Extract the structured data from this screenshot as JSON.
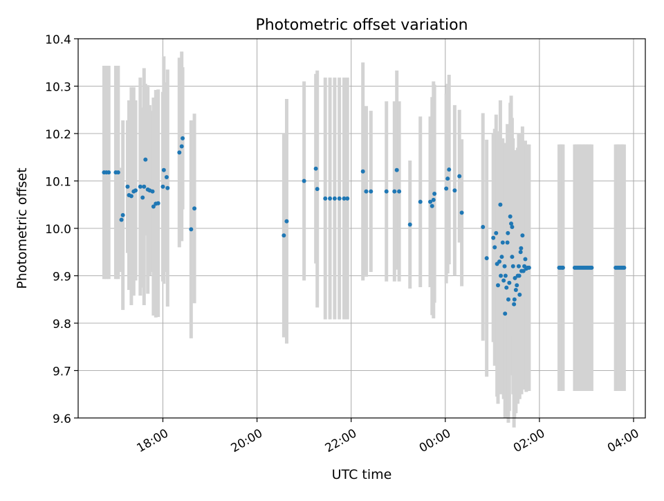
{
  "chart_data": {
    "type": "scatter",
    "title": "Photometric offset variation",
    "xlabel": "UTC time",
    "ylabel": "Photometric offset",
    "x_tick_labels": [
      "18:00",
      "20:00",
      "22:00",
      "00:00",
      "02:00",
      "04:00"
    ],
    "x_tick_hours": [
      18,
      20,
      22,
      24,
      26,
      28
    ],
    "xlim_hours": [
      16.2,
      28.25
    ],
    "y_ticks": [
      "9.6",
      "9.7",
      "9.8",
      "9.9",
      "10.0",
      "10.1",
      "10.2",
      "10.3",
      "10.4"
    ],
    "ylim": [
      9.6,
      10.4
    ],
    "grid": true,
    "errorbar_color": "#d3d3d3",
    "point_color": "#1f77b4",
    "series": [
      {
        "points": [
          [
            16.75,
            10.118,
            0.225
          ],
          [
            16.8,
            10.118,
            0.225
          ],
          [
            16.85,
            10.118,
            0.225
          ],
          [
            17.0,
            10.118,
            0.225
          ],
          [
            17.05,
            10.118,
            0.225
          ],
          [
            17.12,
            10.018,
            0.11
          ],
          [
            17.15,
            10.028,
            0.2
          ],
          [
            17.25,
            10.088,
            0.14
          ],
          [
            17.28,
            10.07,
            0.2
          ],
          [
            17.33,
            10.068,
            0.23
          ],
          [
            17.38,
            10.078,
            0.22
          ],
          [
            17.42,
            10.08,
            0.19
          ],
          [
            17.52,
            10.088,
            0.23
          ],
          [
            17.57,
            10.065,
            0.19
          ],
          [
            17.6,
            10.088,
            0.25
          ],
          [
            17.63,
            10.145,
            0.16
          ],
          [
            17.68,
            10.082,
            0.22
          ],
          [
            17.72,
            10.08,
            0.18
          ],
          [
            17.78,
            10.078,
            0.17
          ],
          [
            17.8,
            10.046,
            0.23
          ],
          [
            17.85,
            10.052,
            0.24
          ],
          [
            17.9,
            10.053,
            0.24
          ],
          [
            18.0,
            10.088,
            0.2
          ],
          [
            18.02,
            10.123,
            0.24
          ],
          [
            18.08,
            10.108,
            0.2
          ],
          [
            18.1,
            10.085,
            0.25
          ],
          [
            18.35,
            10.16,
            0.2
          ],
          [
            18.4,
            10.173,
            0.2
          ],
          [
            18.42,
            10.19,
            0.15
          ],
          [
            18.6,
            9.998,
            0.23
          ],
          [
            18.67,
            10.042,
            0.2
          ],
          [
            20.57,
            9.985,
            0.215
          ],
          [
            20.63,
            10.015,
            0.258
          ],
          [
            21.0,
            10.1,
            0.21
          ],
          [
            21.25,
            10.126,
            0.2
          ],
          [
            21.28,
            10.083,
            0.25
          ],
          [
            21.45,
            10.063,
            0.255
          ],
          [
            21.55,
            10.063,
            0.255
          ],
          [
            21.65,
            10.063,
            0.255
          ],
          [
            21.75,
            10.063,
            0.255
          ],
          [
            21.85,
            10.063,
            0.255
          ],
          [
            21.92,
            10.063,
            0.255
          ],
          [
            22.25,
            10.12,
            0.23
          ],
          [
            22.32,
            10.078,
            0.18
          ],
          [
            22.42,
            10.078,
            0.17
          ],
          [
            22.75,
            10.078,
            0.19
          ],
          [
            22.92,
            10.078,
            0.19
          ],
          [
            22.97,
            10.123,
            0.21
          ],
          [
            23.02,
            10.078,
            0.19
          ],
          [
            23.25,
            10.008,
            0.135
          ],
          [
            23.47,
            10.056,
            0.18
          ],
          [
            23.68,
            10.056,
            0.18
          ],
          [
            23.72,
            10.047,
            0.23
          ],
          [
            23.75,
            10.06,
            0.25
          ],
          [
            23.77,
            10.073,
            0.23
          ],
          [
            24.02,
            10.084,
            0.2
          ],
          [
            24.05,
            10.105,
            0.2
          ],
          [
            24.08,
            10.124,
            0.2
          ],
          [
            24.2,
            10.08,
            0.18
          ],
          [
            24.3,
            10.11,
            0.14
          ],
          [
            24.35,
            10.033,
            0.155
          ],
          [
            24.8,
            10.003,
            0.24
          ],
          [
            24.88,
            9.937,
            0.25
          ],
          [
            25.02,
            9.98,
            0.22
          ],
          [
            25.05,
            9.96,
            0.25
          ],
          [
            25.08,
            9.99,
            0.25
          ],
          [
            25.1,
            9.925,
            0.28
          ],
          [
            25.12,
            9.88,
            0.25
          ],
          [
            25.15,
            9.93,
            0.27
          ],
          [
            25.17,
            10.05,
            0.22
          ],
          [
            25.2,
            9.94,
            0.22
          ],
          [
            25.22,
            9.97,
            0.22
          ],
          [
            25.24,
            9.89,
            0.25
          ],
          [
            25.26,
            9.92,
            0.26
          ],
          [
            25.28,
            9.9,
            0.28
          ],
          [
            25.3,
            9.875,
            0.27
          ],
          [
            25.32,
            9.97,
            0.25
          ],
          [
            25.34,
            9.85,
            0.26
          ],
          [
            25.36,
            9.885,
            0.27
          ],
          [
            25.38,
            10.025,
            0.24
          ],
          [
            25.4,
            10.01,
            0.27
          ],
          [
            25.42,
            9.94,
            0.25
          ],
          [
            25.44,
            9.92,
            0.27
          ],
          [
            25.46,
            9.84,
            0.26
          ],
          [
            25.48,
            9.895,
            0.27
          ],
          [
            25.5,
            9.87,
            0.26
          ],
          [
            25.52,
            9.88,
            0.24
          ],
          [
            25.54,
            9.9,
            0.27
          ],
          [
            25.56,
            9.92,
            0.28
          ],
          [
            25.58,
            9.86,
            0.22
          ],
          [
            25.6,
            9.95,
            0.25
          ],
          [
            25.62,
            9.91,
            0.26
          ],
          [
            25.64,
            9.985,
            0.23
          ],
          [
            25.66,
            9.91,
            0.25
          ],
          [
            25.68,
            9.92,
            0.26
          ],
          [
            25.7,
            9.935,
            0.25
          ],
          [
            25.72,
            9.915,
            0.26
          ],
          [
            25.75,
            9.917,
            0.26
          ],
          [
            25.78,
            9.917,
            0.26
          ],
          [
            25.42,
            10.003,
            0.23
          ],
          [
            25.47,
            9.85,
            0.25
          ],
          [
            25.33,
            9.99,
            0.22
          ],
          [
            25.57,
            9.9,
            0.26
          ],
          [
            25.61,
            9.958,
            0.24
          ],
          [
            25.18,
            9.9,
            0.25
          ],
          [
            25.27,
            9.82,
            0.22
          ],
          [
            26.42,
            9.917,
            0.26
          ],
          [
            26.45,
            9.917,
            0.26
          ],
          [
            26.48,
            9.917,
            0.26
          ],
          [
            26.5,
            9.917,
            0.26
          ],
          [
            26.75,
            9.917,
            0.26
          ],
          [
            26.78,
            9.917,
            0.26
          ],
          [
            26.81,
            9.917,
            0.26
          ],
          [
            26.84,
            9.917,
            0.26
          ],
          [
            26.87,
            9.917,
            0.26
          ],
          [
            26.9,
            9.917,
            0.26
          ],
          [
            26.93,
            9.917,
            0.26
          ],
          [
            26.96,
            9.917,
            0.26
          ],
          [
            26.99,
            9.917,
            0.26
          ],
          [
            27.02,
            9.917,
            0.26
          ],
          [
            27.05,
            9.917,
            0.26
          ],
          [
            27.08,
            9.917,
            0.26
          ],
          [
            27.11,
            9.917,
            0.26
          ],
          [
            27.62,
            9.917,
            0.26
          ],
          [
            27.65,
            9.917,
            0.26
          ],
          [
            27.68,
            9.917,
            0.26
          ],
          [
            27.71,
            9.917,
            0.26
          ],
          [
            27.74,
            9.917,
            0.26
          ],
          [
            27.77,
            9.917,
            0.26
          ],
          [
            27.8,
            9.917,
            0.26
          ]
        ]
      }
    ]
  }
}
